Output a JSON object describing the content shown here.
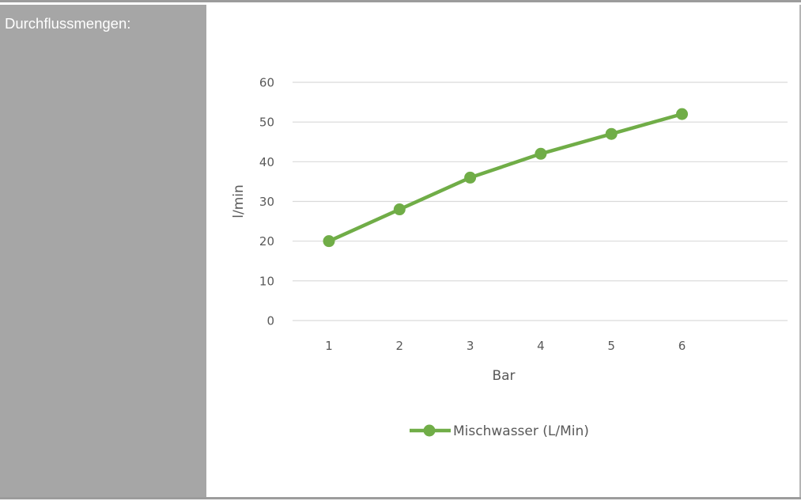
{
  "row_label": "Durchflussmengen:",
  "chart_data": {
    "type": "line",
    "x": [
      "1",
      "2",
      "3",
      "4",
      "5",
      "6"
    ],
    "series": [
      {
        "name": "Mischwasser (L/Min)",
        "values": [
          20,
          28,
          36,
          42,
          47,
          52
        ]
      }
    ],
    "xlabel": "Bar",
    "ylabel": "l/min",
    "ylim": [
      0,
      60
    ],
    "yticks": [
      0,
      10,
      20,
      30,
      40,
      50,
      60
    ],
    "grid": true,
    "legend": "bottom",
    "colors": {
      "series": "#70ad47",
      "grid": "#d9d9d9",
      "text": "#595959"
    }
  }
}
